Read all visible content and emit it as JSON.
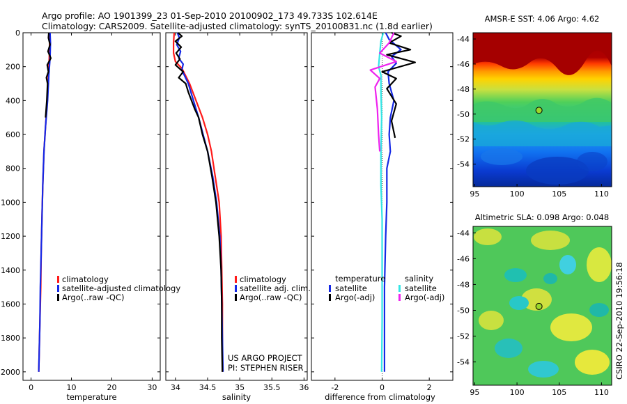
{
  "title_line1": "Argo profile: AO 1901399_23 01-Sep-2010 20100902_173 49.733S 102.614E",
  "title_line2": "Climatology: CARS2009. Satellite-adjusted climatology: synTS_20100831.nc (1.8d earlier)",
  "colors": {
    "climatology": "#ff1a1a",
    "satellite": "#1428e6",
    "argo": "#000000",
    "satellite_salinity": "#33e6e6",
    "argo_salinity": "#ee22ee"
  },
  "credits": {
    "project": "US ARGO PROJECT",
    "pi": "PI: STEPHEN RISER",
    "csiro": "CSIRO 22-Sep-2010 19:56:18"
  },
  "chart_data": [
    {
      "id": "temperature",
      "type": "line",
      "xlabel": "temperature",
      "xlim": [
        -2,
        32
      ],
      "ylim": [
        0,
        2050
      ],
      "yticks": [
        0,
        200,
        400,
        600,
        800,
        1000,
        1200,
        1400,
        1600,
        1800,
        2000
      ],
      "xticks": [
        {
          "v": 0,
          "label": "0"
        },
        {
          "v": 10,
          "label": "10"
        },
        {
          "v": 20,
          "label": "20"
        },
        {
          "v": 30,
          "label": "30"
        }
      ],
      "legend": [
        {
          "label": "climatology",
          "color": "#ff1a1a"
        },
        {
          "label": "satellite-adjusted climatology",
          "color": "#1428e6"
        },
        {
          "label": "Argo(..raw -QC)",
          "color": "#000000"
        }
      ],
      "series": [
        {
          "name": "climatology",
          "color": "#ff1a1a",
          "points": [
            [
              4.6,
              0
            ],
            [
              4.6,
              60
            ],
            [
              4.5,
              150
            ],
            [
              4.3,
              250
            ],
            [
              4.0,
              400
            ],
            [
              3.6,
              550
            ],
            [
              3.2,
              700
            ],
            [
              2.9,
              900
            ],
            [
              2.7,
              1100
            ],
            [
              2.5,
              1300
            ],
            [
              2.4,
              1500
            ],
            [
              2.2,
              1700
            ],
            [
              2.0,
              1900
            ],
            [
              1.9,
              2000
            ]
          ]
        },
        {
          "name": "satellite-adjusted climatology",
          "color": "#1428e6",
          "points": [
            [
              4.7,
              0
            ],
            [
              4.8,
              60
            ],
            [
              4.7,
              150
            ],
            [
              4.4,
              250
            ],
            [
              4.1,
              400
            ],
            [
              3.6,
              550
            ],
            [
              3.2,
              700
            ],
            [
              2.9,
              900
            ],
            [
              2.7,
              1100
            ],
            [
              2.5,
              1300
            ],
            [
              2.3,
              1500
            ],
            [
              2.2,
              1700
            ],
            [
              2.0,
              1900
            ],
            [
              1.9,
              2000
            ]
          ]
        },
        {
          "name": "Argo(..raw -QC)",
          "color": "#000000",
          "points": [
            [
              4.4,
              0
            ],
            [
              4.3,
              30
            ],
            [
              4.7,
              70
            ],
            [
              4.2,
              110
            ],
            [
              4.9,
              150
            ],
            [
              4.0,
              190
            ],
            [
              4.3,
              230
            ],
            [
              3.8,
              265
            ],
            [
              4.1,
              300
            ],
            [
              3.9,
              400
            ],
            [
              3.6,
              500
            ]
          ]
        }
      ]
    },
    {
      "id": "salinity",
      "type": "line",
      "xlabel": "salinity",
      "xlim": [
        33.85,
        36.05
      ],
      "ylim": [
        0,
        2050
      ],
      "xticks": [
        {
          "v": 34,
          "label": "34"
        },
        {
          "v": 34.5,
          "label": "34.5"
        },
        {
          "v": 35,
          "label": "35"
        },
        {
          "v": 35.5,
          "label": "35.5"
        },
        {
          "v": 36,
          "label": "36"
        }
      ],
      "legend": [
        {
          "label": "climatology",
          "color": "#ff1a1a"
        },
        {
          "label": "satellite adj. clim.",
          "color": "#1428e6"
        },
        {
          "label": "Argo(..raw -QC)",
          "color": "#000000"
        }
      ],
      "series": [
        {
          "name": "climatology",
          "color": "#ff1a1a",
          "points": [
            [
              33.98,
              0
            ],
            [
              33.97,
              60
            ],
            [
              33.97,
              120
            ],
            [
              34.0,
              170
            ],
            [
              34.1,
              210
            ],
            [
              34.22,
              300
            ],
            [
              34.32,
              400
            ],
            [
              34.42,
              500
            ],
            [
              34.5,
              600
            ],
            [
              34.56,
              700
            ],
            [
              34.62,
              850
            ],
            [
              34.68,
              1000
            ],
            [
              34.71,
              1200
            ],
            [
              34.72,
              1400
            ],
            [
              34.73,
              1600
            ],
            [
              34.73,
              1800
            ],
            [
              34.73,
              2000
            ]
          ]
        },
        {
          "name": "satellite adj. clim.",
          "color": "#1428e6",
          "points": [
            [
              34.03,
              0
            ],
            [
              34.06,
              30
            ],
            [
              34.02,
              70
            ],
            [
              34.08,
              110
            ],
            [
              34.05,
              150
            ],
            [
              34.12,
              185
            ],
            [
              34.1,
              220
            ],
            [
              34.2,
              300
            ],
            [
              34.28,
              400
            ],
            [
              34.36,
              500
            ],
            [
              34.43,
              600
            ],
            [
              34.5,
              700
            ],
            [
              34.58,
              850
            ],
            [
              34.64,
              1000
            ],
            [
              34.69,
              1200
            ],
            [
              34.71,
              1400
            ],
            [
              34.72,
              1600
            ],
            [
              34.73,
              1800
            ],
            [
              34.74,
              2000
            ]
          ]
        },
        {
          "name": "Argo(..raw -QC)",
          "color": "#000000",
          "points": [
            [
              34.04,
              0
            ],
            [
              34.1,
              20
            ],
            [
              34.0,
              50
            ],
            [
              34.09,
              85
            ],
            [
              34.01,
              120
            ],
            [
              34.07,
              155
            ],
            [
              34.0,
              190
            ],
            [
              34.12,
              230
            ],
            [
              34.05,
              265
            ],
            [
              34.16,
              300
            ],
            [
              34.2,
              350
            ],
            [
              34.25,
              400
            ],
            [
              34.3,
              450
            ],
            [
              34.36,
              500
            ],
            [
              34.42,
              600
            ],
            [
              34.5,
              700
            ],
            [
              34.57,
              850
            ],
            [
              34.63,
              1000
            ],
            [
              34.68,
              1200
            ],
            [
              34.71,
              1400
            ],
            [
              34.72,
              1600
            ],
            [
              34.72,
              1800
            ],
            [
              34.73,
              2000
            ]
          ]
        }
      ]
    },
    {
      "id": "difference",
      "type": "line",
      "xlabel": "difference from climatology",
      "xlim": [
        -3,
        3
      ],
      "ylim": [
        0,
        2050
      ],
      "xticks": [
        {
          "v": -2,
          "label": "-2"
        },
        {
          "v": 0,
          "label": "0"
        },
        {
          "v": 2,
          "label": "2"
        }
      ],
      "legend_groups": [
        {
          "title": "temperature",
          "items": [
            {
              "label": "satellite",
              "color": "#1428e6"
            },
            {
              "label": "Argo(-adj)",
              "color": "#000000"
            }
          ]
        },
        {
          "title": "salinity",
          "items": [
            {
              "label": "satellite",
              "color": "#33e6e6"
            },
            {
              "label": "Argo(-adj)",
              "color": "#ee22ee"
            }
          ]
        }
      ],
      "series": [
        {
          "name": "temperature satellite",
          "color": "#1428e6",
          "points": [
            [
              0.15,
              0
            ],
            [
              0.3,
              40
            ],
            [
              0.8,
              100
            ],
            [
              0.4,
              140
            ],
            [
              0.6,
              180
            ],
            [
              0.25,
              230
            ],
            [
              0.3,
              300
            ],
            [
              0.5,
              400
            ],
            [
              0.35,
              500
            ],
            [
              0.3,
              600
            ],
            [
              0.35,
              700
            ],
            [
              0.2,
              800
            ],
            [
              0.2,
              1000
            ],
            [
              0.15,
              1200
            ],
            [
              0.1,
              1500
            ],
            [
              0.1,
              1800
            ],
            [
              0.1,
              2000
            ]
          ]
        },
        {
          "name": "temperature Argo(-adj)",
          "color": "#000000",
          "points": [
            [
              0.4,
              0
            ],
            [
              0.8,
              20
            ],
            [
              0.3,
              60
            ],
            [
              1.2,
              100
            ],
            [
              0.2,
              130
            ],
            [
              1.4,
              175
            ],
            [
              0.0,
              230
            ],
            [
              0.6,
              270
            ],
            [
              0.2,
              330
            ],
            [
              0.6,
              420
            ],
            [
              0.4,
              520
            ],
            [
              0.55,
              620
            ]
          ]
        },
        {
          "name": "salinity satellite",
          "color": "#33e6e6",
          "points": [
            [
              0.05,
              0
            ],
            [
              -0.05,
              50
            ],
            [
              -0.1,
              120
            ],
            [
              -0.15,
              200
            ],
            [
              -0.05,
              250
            ],
            [
              -0.05,
              350
            ],
            [
              -0.02,
              500
            ],
            [
              -0.05,
              700
            ],
            [
              -0.05,
              900
            ],
            [
              0.0,
              1100
            ],
            [
              0.0,
              1400
            ],
            [
              0.0,
              1700
            ],
            [
              -0.02,
              2000
            ]
          ]
        },
        {
          "name": "salinity Argo(-adj)",
          "color": "#ee22ee",
          "points": [
            [
              0.5,
              0
            ],
            [
              0.3,
              60
            ],
            [
              -0.1,
              120
            ],
            [
              0.6,
              170
            ],
            [
              -0.5,
              220
            ],
            [
              -0.1,
              270
            ],
            [
              -0.3,
              320
            ],
            [
              -0.2,
              450
            ],
            [
              -0.15,
              600
            ],
            [
              -0.1,
              700
            ]
          ]
        }
      ]
    },
    {
      "id": "sst_map",
      "type": "heatmap",
      "title": "AMSR-E SST: 4.06 Argo: 4.62",
      "xlim": [
        94.8,
        111.2
      ],
      "ylim": [
        -55.8,
        -43.5
      ],
      "xticks": [
        {
          "v": 95,
          "label": "95"
        },
        {
          "v": 100,
          "label": "100"
        },
        {
          "v": 105,
          "label": "105"
        },
        {
          "v": 110,
          "label": "110"
        }
      ],
      "yticks": [
        {
          "v": -44,
          "label": "-44"
        },
        {
          "v": -46,
          "label": "-46"
        },
        {
          "v": -48,
          "label": "-48"
        },
        {
          "v": -50,
          "label": "-50"
        },
        {
          "v": -52,
          "label": "-52"
        },
        {
          "v": -54,
          "label": "-54"
        }
      ],
      "argo_point": [
        102.6,
        -49.7
      ]
    },
    {
      "id": "sla_map",
      "type": "heatmap",
      "title": "Altimetric SLA: 0.098 Argo: 0.048",
      "xlim": [
        94.8,
        111.2
      ],
      "ylim": [
        -55.8,
        -43.5
      ],
      "xticks": [
        {
          "v": 95,
          "label": "95"
        },
        {
          "v": 100,
          "label": "100"
        },
        {
          "v": 105,
          "label": "105"
        },
        {
          "v": 110,
          "label": "110"
        }
      ],
      "yticks": [
        {
          "v": -44,
          "label": "-44"
        },
        {
          "v": -46,
          "label": "-46"
        },
        {
          "v": -48,
          "label": "-48"
        },
        {
          "v": -50,
          "label": "-50"
        },
        {
          "v": -52,
          "label": "-52"
        },
        {
          "v": -54,
          "label": "-54"
        }
      ],
      "argo_point": [
        102.6,
        -49.7
      ]
    }
  ]
}
